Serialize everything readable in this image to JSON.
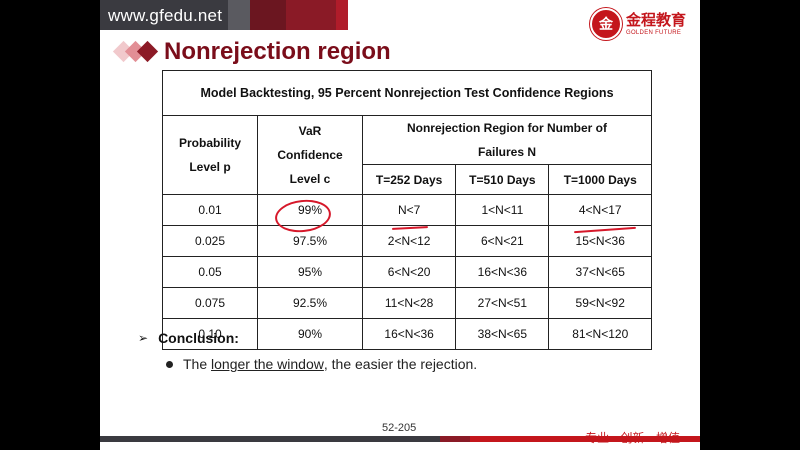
{
  "header": {
    "site_url": "www.gfedu.net",
    "logo_cn": "金程教育",
    "logo_en": "GOLDEN FUTURE",
    "logo_seal_icon": "gf-seal-icon"
  },
  "title": "Nonrejection region",
  "table": {
    "caption": "Model Backtesting, 95 Percent Nonrejection Test  Confidence Regions",
    "col_probability": [
      "Probability",
      "Level p"
    ],
    "col_var": [
      "VaR",
      "Confidence",
      "Level c"
    ],
    "col_region": [
      "Nonrejection Region for Number of",
      "Failures N"
    ],
    "sub_headers": [
      "T=252 Days",
      "T=510 Days",
      "T=1000 Days"
    ],
    "rows": [
      [
        "0.01",
        "99%",
        "N<7",
        "1<N<11",
        "4<N<17"
      ],
      [
        "0.025",
        "97.5%",
        "2<N<12",
        "6<N<21",
        "15<N<36"
      ],
      [
        "0.05",
        "95%",
        "6<N<20",
        "16<N<36",
        "37<N<65"
      ],
      [
        "0.075",
        "92.5%",
        "11<N<28",
        "27<N<51",
        "59<N<92"
      ],
      [
        "0.10",
        "90%",
        "16<N<36",
        "38<N<65",
        "81<N<120"
      ]
    ]
  },
  "conclusion": {
    "label": "Conclusion:",
    "text_before": "The ",
    "text_underlined": "longer the window",
    "text_after": ", the easier the rejection."
  },
  "footer": {
    "page_number": "52-205",
    "slogan": "专业 · 创新 · 增值"
  },
  "colors": {
    "banner_dark": "#4a1018",
    "accent_red": "#c4161c",
    "title_color": "#7a0d1a",
    "annotation_red": "#d6182a"
  }
}
